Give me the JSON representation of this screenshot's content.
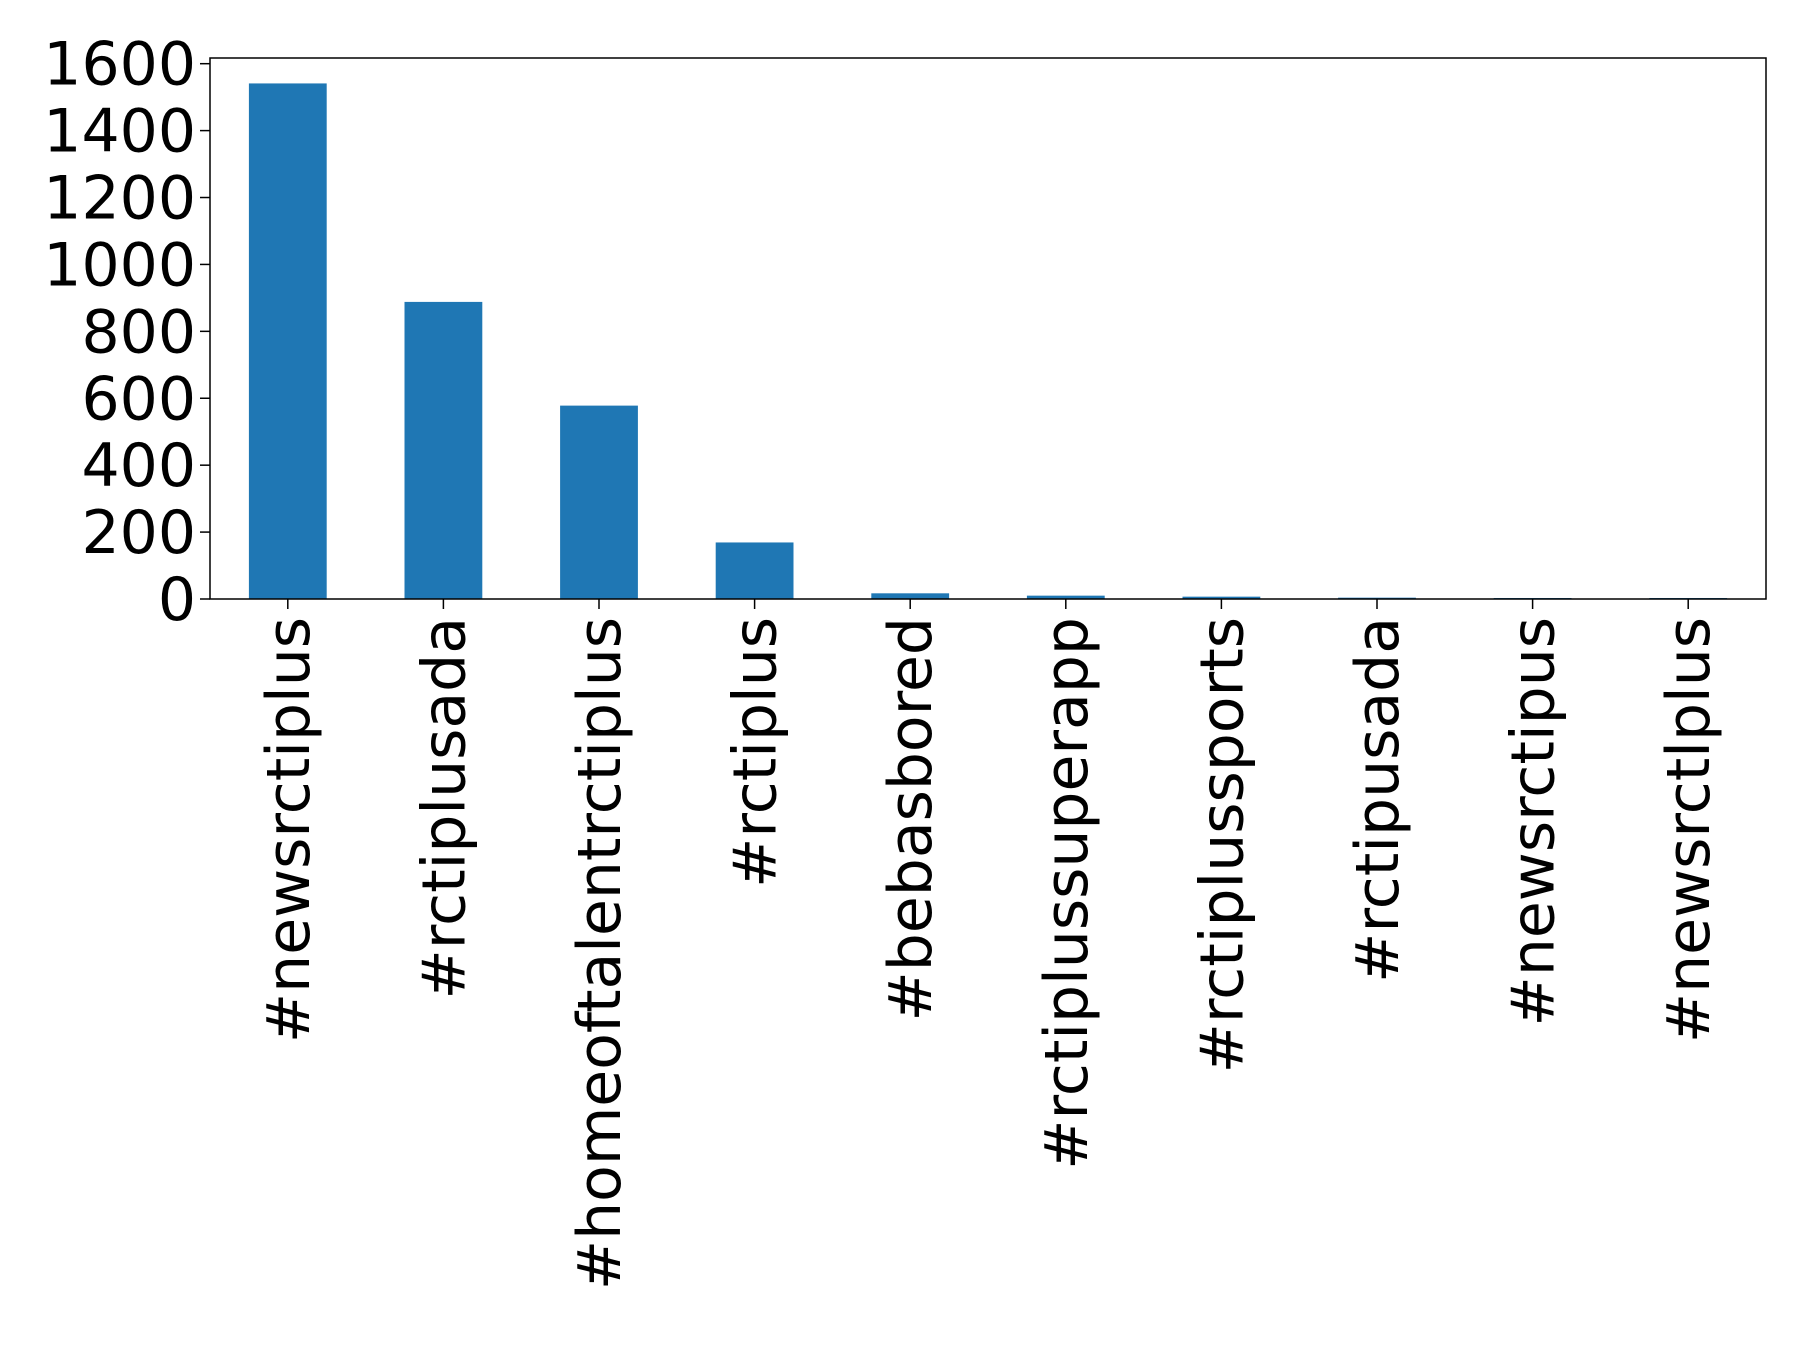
{
  "chart_data": {
    "type": "bar",
    "categories": [
      "#newsrctiplus",
      "#rctiplusada",
      "#homeoftalentrctiplus",
      "#rctiplus",
      "#bebasbored",
      "#rctiplussuperapp",
      "#rctiplussports",
      "#rctipusada",
      "#newsrctipus",
      "#newsrctlplus"
    ],
    "values": [
      1541,
      888,
      578,
      169,
      17,
      10,
      7,
      4,
      3,
      3
    ],
    "color": "#1f77b4",
    "ylim": [
      0,
      1617
    ],
    "yticks": [
      0,
      200,
      400,
      600,
      800,
      1000,
      1200,
      1400,
      1600
    ],
    "grid": false
  }
}
